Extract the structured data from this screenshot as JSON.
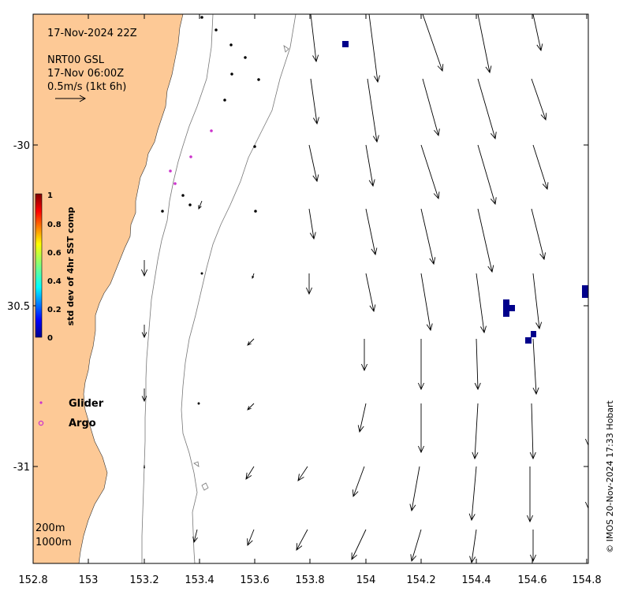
{
  "header": {
    "date_time": "17-Nov-2024 22Z",
    "product": "NRT00 GSL",
    "valid_time": "17-Nov 06:00Z",
    "scale_label": "0.5m/s (1kt 6h)"
  },
  "colorbar": {
    "title": "std dev of 4hr SST comp",
    "ticks": [
      "0",
      "0.2",
      "0.4",
      "0.6",
      "0.8",
      "1"
    ]
  },
  "legend": {
    "glider": "Glider",
    "argo": "Argo",
    "glider_color": "#cc33cc",
    "argo_color": "#cc33cc"
  },
  "isobaths": {
    "label_200": "200m",
    "label_1000": "1000m"
  },
  "axes": {
    "x_ticks": [
      "152.8",
      "153",
      "153.2",
      "153.4",
      "153.6",
      "153.8",
      "154",
      "154.2",
      "154.4",
      "154.6",
      "154.8"
    ],
    "y_ticks": [
      "-30",
      "30.5",
      "-31"
    ]
  },
  "credit": "© IMOS 20-Nov-2024 17:33 Hobart",
  "colors": {
    "land": "#fdc996",
    "ocean": "#ffffff",
    "sst_cell": "#00008b",
    "glider_track": "#cc33cc"
  }
}
